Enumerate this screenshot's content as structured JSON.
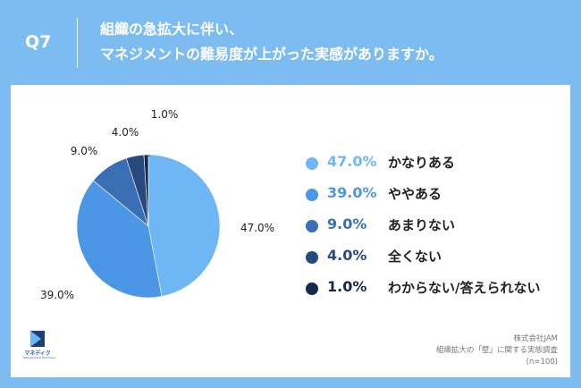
{
  "header": {
    "question_number": "Q7",
    "question_line1": "組織の急拡大に伴い、",
    "question_line2": "マネジメントの難易度が上がった実感がありますか。"
  },
  "chart_data": {
    "type": "pie",
    "categories": [
      "かなりある",
      "ややある",
      "あまりない",
      "全くない",
      "わからない/答えられない"
    ],
    "values": [
      47.0,
      39.0,
      9.0,
      4.0,
      1.0
    ],
    "value_labels": [
      "47.0%",
      "39.0%",
      "9.0%",
      "4.0%",
      "1.0%"
    ],
    "colors": [
      "#6fb6f4",
      "#4c96e6",
      "#3a6fb5",
      "#27497d",
      "#15294d"
    ],
    "start": "12 o'clock",
    "direction": "clockwise",
    "legend": "right"
  },
  "footer": {
    "company": "株式会社JAM",
    "survey": "組織拡大の「壁」に関する実態調査",
    "sample": "(n=100)"
  },
  "logo": {
    "name": "マネディク",
    "sub": "Management Dictionary"
  }
}
